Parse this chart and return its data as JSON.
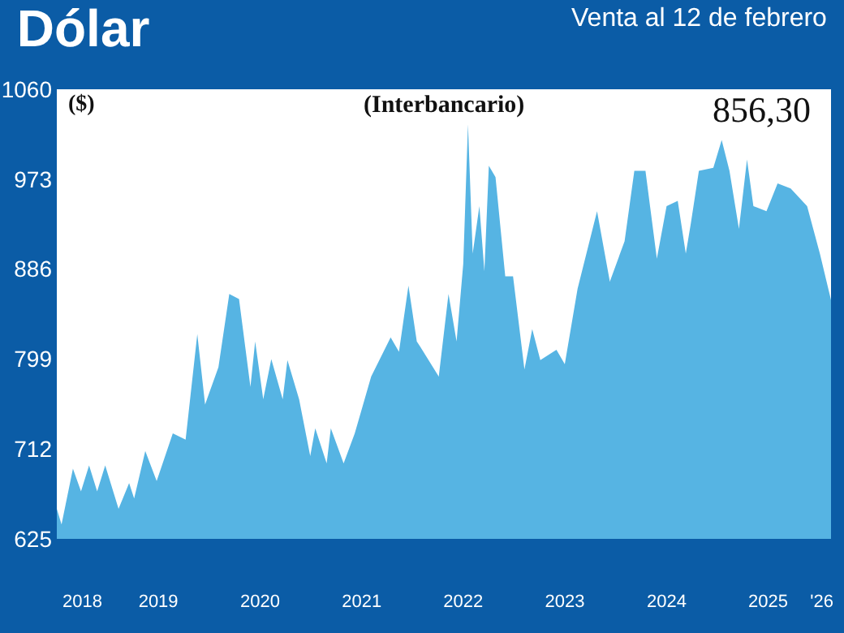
{
  "chart_data": {
    "type": "area",
    "title": "Dólar",
    "subtitle": "Venta al 12 de febrero",
    "ylabel": "($)",
    "annotations": [
      "(Interbancario)",
      "856,30"
    ],
    "x": [
      "2018-07-01",
      "2018-07-18",
      "2018-08-28",
      "2018-09-26",
      "2018-10-25",
      "2018-11-23",
      "2018-12-22",
      "2019-02-08",
      "2019-03-18",
      "2019-04-05",
      "2019-05-15",
      "2019-06-25",
      "2019-08-22",
      "2019-10-07",
      "2019-11-18",
      "2019-12-16",
      "2020-02-02",
      "2020-03-12",
      "2020-04-16",
      "2020-05-27",
      "2020-06-13",
      "2020-07-12",
      "2020-08-10",
      "2020-09-20",
      "2020-10-07",
      "2020-11-18",
      "2020-12-28",
      "2021-01-15",
      "2021-02-25",
      "2021-03-12",
      "2021-04-27",
      "2021-06-06",
      "2021-08-04",
      "2021-10-13",
      "2021-11-12",
      "2021-12-16",
      "2022-01-15",
      "2022-01-27",
      "2022-04-04",
      "2022-05-09",
      "2022-06-07",
      "2022-07-01",
      "2022-07-18",
      "2022-08-04",
      "2022-08-28",
      "2022-09-15",
      "2022-10-01",
      "2022-10-25",
      "2022-11-29",
      "2022-12-27",
      "2023-02-06",
      "2023-03-06",
      "2023-04-04",
      "2023-06-01",
      "2023-07-01",
      "2023-08-16",
      "2023-10-25",
      "2023-12-10",
      "2024-02-01",
      "2024-03-07",
      "2024-04-16",
      "2024-05-27",
      "2024-07-01",
      "2024-08-10",
      "2024-09-08",
      "2024-09-26",
      "2024-10-25",
      "2024-12-16",
      "2025-01-15",
      "2025-02-12",
      "2025-03-18",
      "2025-04-16",
      "2025-05-09",
      "2025-06-25",
      "2025-08-04",
      "2025-09-20",
      "2025-11-18",
      "2026-01-03",
      "2026-02-12"
    ],
    "series": [
      {
        "color": "#56b4e3",
        "values": [
          654,
          639,
          693,
          671,
          696,
          671,
          696,
          654,
          679,
          664,
          710,
          681,
          727,
          721,
          823,
          755,
          791,
          862,
          857,
          772,
          816,
          760,
          799,
          760,
          798,
          760,
          705,
          732,
          698,
          732,
          698,
          727,
          782,
          820,
          806,
          870,
          816,
          811,
          782,
          862,
          816,
          891,
          1026,
          901,
          947,
          884,
          986,
          975,
          879,
          879,
          789,
          828,
          798,
          808,
          794,
          867,
          942,
          874,
          913,
          981,
          981,
          896,
          947,
          952,
          901,
          930,
          981,
          984,
          1011,
          981,
          925,
          992,
          947,
          942,
          969,
          964,
          947,
          901,
          856
        ]
      }
    ],
    "xlim": [
      "2018-07-01",
      "2026-02-12"
    ],
    "xticks": [
      {
        "value": "2018-10-01",
        "label": "2018"
      },
      {
        "value": "2019-07-01",
        "label": "2019"
      },
      {
        "value": "2020-07-01",
        "label": "2020"
      },
      {
        "value": "2021-07-01",
        "label": "2021"
      },
      {
        "value": "2022-07-01",
        "label": "2022"
      },
      {
        "value": "2023-07-01",
        "label": "2023"
      },
      {
        "value": "2024-07-01",
        "label": "2024"
      },
      {
        "value": "2025-07-01",
        "label": "2025"
      },
      {
        "value": "2026-01-10",
        "label": "'26"
      }
    ],
    "ylim": [
      625,
      1060
    ],
    "yticks": [
      625,
      712,
      799,
      886,
      973,
      1060
    ]
  }
}
